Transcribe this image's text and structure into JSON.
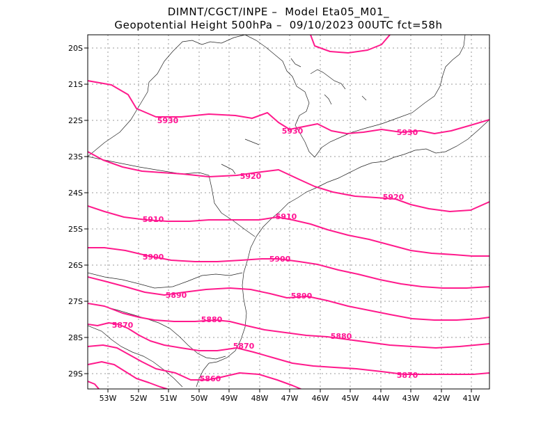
{
  "header": {
    "line1": "DIMNT/CGCT/INPE –  Model Eta05_M01_",
    "line2": "Geopotential Height 500hPa –  09/10/2023 00UTC fct=58h"
  },
  "axes": {
    "lat_labels": [
      "20S",
      "21S",
      "22S",
      "23S",
      "24S",
      "25S",
      "26S",
      "27S",
      "28S",
      "29S"
    ],
    "lon_labels": [
      "53W",
      "52W",
      "51W",
      "50W",
      "49W",
      "48W",
      "47W",
      "46W",
      "45W",
      "44W",
      "43W",
      "42W",
      "41W"
    ]
  },
  "contour_labels": [
    {
      "text": "5930"
    },
    {
      "text": "5930"
    },
    {
      "text": "5930"
    },
    {
      "text": "5920"
    },
    {
      "text": "5920"
    },
    {
      "text": "5910"
    },
    {
      "text": "5910"
    },
    {
      "text": "5900"
    },
    {
      "text": "5900"
    },
    {
      "text": "5890"
    },
    {
      "text": "5890"
    },
    {
      "text": "5880"
    },
    {
      "text": "5880"
    },
    {
      "text": "5870"
    },
    {
      "text": "5870"
    },
    {
      "text": "5870"
    },
    {
      "text": "5860"
    }
  ],
  "colors": {
    "contour": "#ff1a8c",
    "coast": "#222222",
    "grid": "#9a9a9a"
  }
}
